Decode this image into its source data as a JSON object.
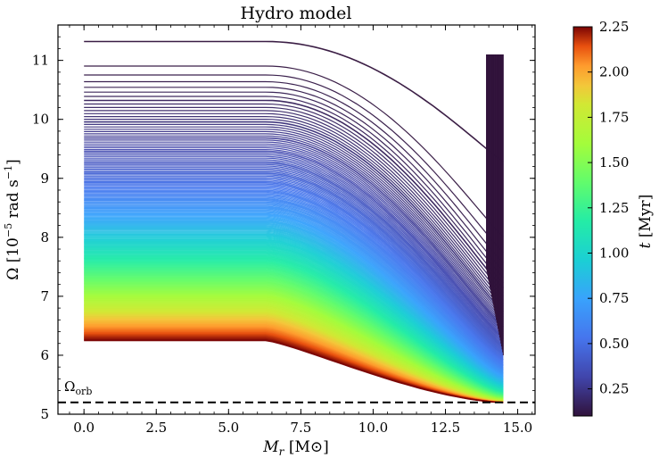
{
  "chart_data": {
    "type": "line",
    "title": "Hydro model",
    "xlabel": "M_r [M⊙]",
    "xlabel_main": "M",
    "xlabel_sub": "r",
    "xlabel_unit": " [M⊙]",
    "ylabel": "Ω [10⁻⁵ rad s⁻¹]",
    "ylabel_main": "Ω [10",
    "ylabel_exp": "−5",
    "ylabel_mid": " rad s",
    "ylabel_exp2": "−1",
    "ylabel_end": "]",
    "xlim": [
      -0.9,
      15.6
    ],
    "ylim": [
      5.0,
      11.6
    ],
    "x_ticks": [
      0.0,
      2.5,
      5.0,
      7.5,
      10.0,
      12.5,
      15.0
    ],
    "x_tick_labels": [
      "0.0",
      "2.5",
      "5.0",
      "7.5",
      "10.0",
      "12.5",
      "15.0"
    ],
    "y_ticks": [
      5,
      6,
      7,
      8,
      9,
      10,
      11
    ],
    "y_tick_labels": [
      "5",
      "6",
      "7",
      "8",
      "9",
      "10",
      "11"
    ],
    "grid": false,
    "series_description": "Family of Omega(M_r) profiles colored by time t; omega decreases with time from ~11.3 at t=0.1 Myr to ~6.25 at t=2.25 Myr; profiles are flat out to ~6.3 Msun then decline toward ~5.2 at the surface (~14.5 Msun).",
    "profiles": {
      "t_range_myr": [
        0.1,
        2.25
      ],
      "mass_surface": 14.5,
      "flat_until": 6.3,
      "omega_core_at_t_start": 11.32,
      "omega_core_at_t_end": 6.25,
      "omega_surface_at_t_end": 5.2
    },
    "reference_line": {
      "label": "Ω",
      "label_sub": "orb",
      "y": 5.2,
      "style": "dashed",
      "color": "#000000"
    },
    "colorbar": {
      "label_var": "t",
      "label_unit": " [Myr]",
      "range": [
        0.1,
        2.25
      ],
      "ticks": [
        0.25,
        0.5,
        0.75,
        1.0,
        1.25,
        1.5,
        1.75,
        2.0,
        2.25
      ],
      "tick_labels": [
        "0.25",
        "0.50",
        "0.75",
        "1.00",
        "1.25",
        "1.50",
        "1.75",
        "2.00",
        "2.25"
      ],
      "colormap": "turbo"
    }
  }
}
